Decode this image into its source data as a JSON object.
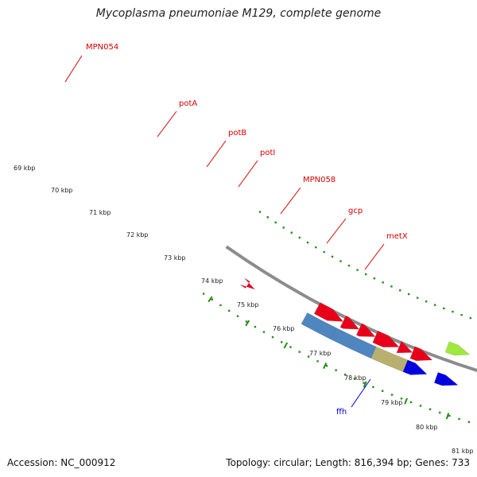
{
  "map": {
    "title": "Mycoplasma pneumoniae M129, complete genome",
    "footer_accession": "Accession: NC_000912",
    "footer_stats": "Topology: circular; Length: 816,394 bp; Genes: 733"
  },
  "colors": {
    "backbone": "#8c8c8c",
    "forward_cds": "#4f86c0",
    "reverse_cds": "#e8001a",
    "forward_rna": "#0000e0",
    "forward_other": "#b9b070",
    "ffh": "#a0e83c",
    "cyan_gene": "#00b7ef",
    "ticks": "#2a8a1a",
    "label_red": "#d40000",
    "label_blue": "#0000c8"
  },
  "gene_labels": [
    {
      "name": "MPN054",
      "color": "label_red"
    },
    {
      "name": "potA",
      "color": "label_red"
    },
    {
      "name": "potB",
      "color": "label_red"
    },
    {
      "name": "potI",
      "color": "label_red"
    },
    {
      "name": "MPN058",
      "color": "label_red"
    },
    {
      "name": "gcp",
      "color": "label_red"
    },
    {
      "name": "metX",
      "color": "label_red"
    },
    {
      "name": "ffh",
      "color": "label_blue"
    }
  ],
  "tick_labels": [
    "69 kbp",
    "70 kbp",
    "71 kbp",
    "72 kbp",
    "73 kbp",
    "74 kbp",
    "75 kbp",
    "76 kbp",
    "77 kbp",
    "78 kbp",
    "79 kbp",
    "80 kbp",
    "81 kbp"
  ]
}
